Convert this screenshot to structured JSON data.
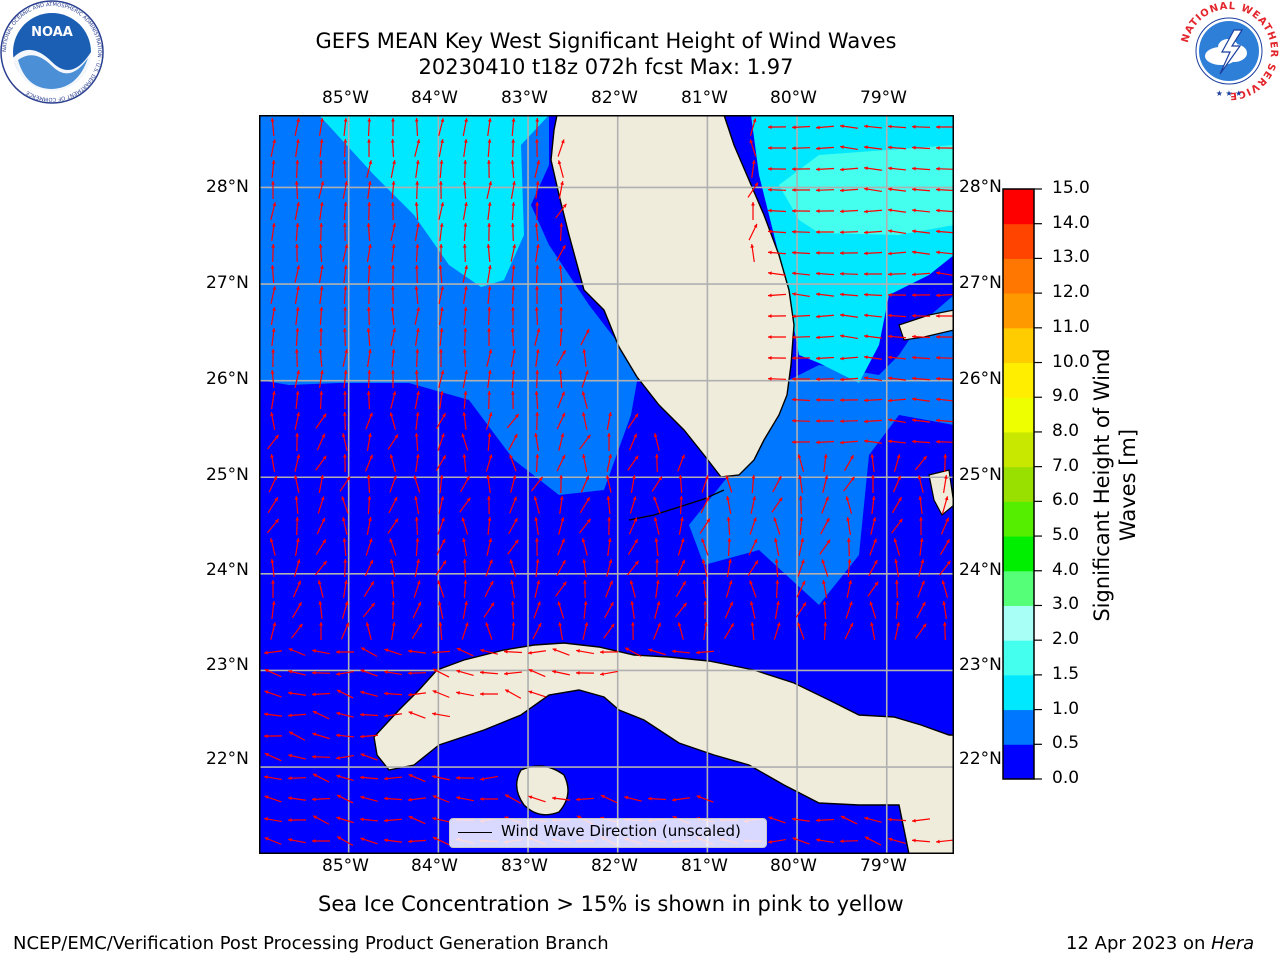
{
  "title_line1": "GEFS MEAN Key West Significant Height of Wind Waves",
  "title_line2": "20230410 t18z 072h fcst   Max: 1.97",
  "lon_ticks": [
    "85°W",
    "84°W",
    "83°W",
    "82°W",
    "81°W",
    "80°W",
    "79°W"
  ],
  "lat_ticks": [
    "28°N",
    "27°N",
    "26°N",
    "25°N",
    "24°N",
    "23°N",
    "22°N"
  ],
  "map_extent": {
    "lon": [
      -86.0,
      -78.25
    ],
    "lat": [
      21.1,
      28.75
    ]
  },
  "colorbar": {
    "label": "Significant Height of Wind Waves [m]",
    "ticks": [
      "0.0",
      "0.5",
      "1.0",
      "1.5",
      "2.0",
      "3.0",
      "4.0",
      "5.0",
      "6.0",
      "7.0",
      "8.0",
      "9.0",
      "10.0",
      "11.0",
      "12.0",
      "13.0",
      "14.0",
      "15.0"
    ],
    "colors": [
      "#0000ff",
      "#0077ff",
      "#00e8ff",
      "#44ffee",
      "#a8fff6",
      "#55ff77",
      "#00ee00",
      "#55ee00",
      "#99e000",
      "#c8e800",
      "#eeff00",
      "#ffee00",
      "#ffcc00",
      "#ff9900",
      "#ff7700",
      "#ff4400",
      "#ff0000"
    ]
  },
  "legend": {
    "text": "Wind Wave Direction (unscaled)"
  },
  "note": "Sea Ice Concentration > 15% is shown in pink to yellow",
  "footer_left": "NCEP/EMC/Verification Post Processing Product Generation Branch",
  "footer_right_date": "12 Apr 2023 on ",
  "footer_right_host": "Hera",
  "logo_left": {
    "name": "NOAA",
    "ring_text": "NATIONAL OCEANIC AND ATMOSPHERIC ADMINISTRATION · U.S. DEPARTMENT OF COMMERCE"
  },
  "logo_right": {
    "ring_text": "NATIONAL WEATHER SERVICE"
  },
  "colors": {
    "land": "#efecdc",
    "arrow": "#ff0000",
    "grid": "#b0b0b0"
  }
}
